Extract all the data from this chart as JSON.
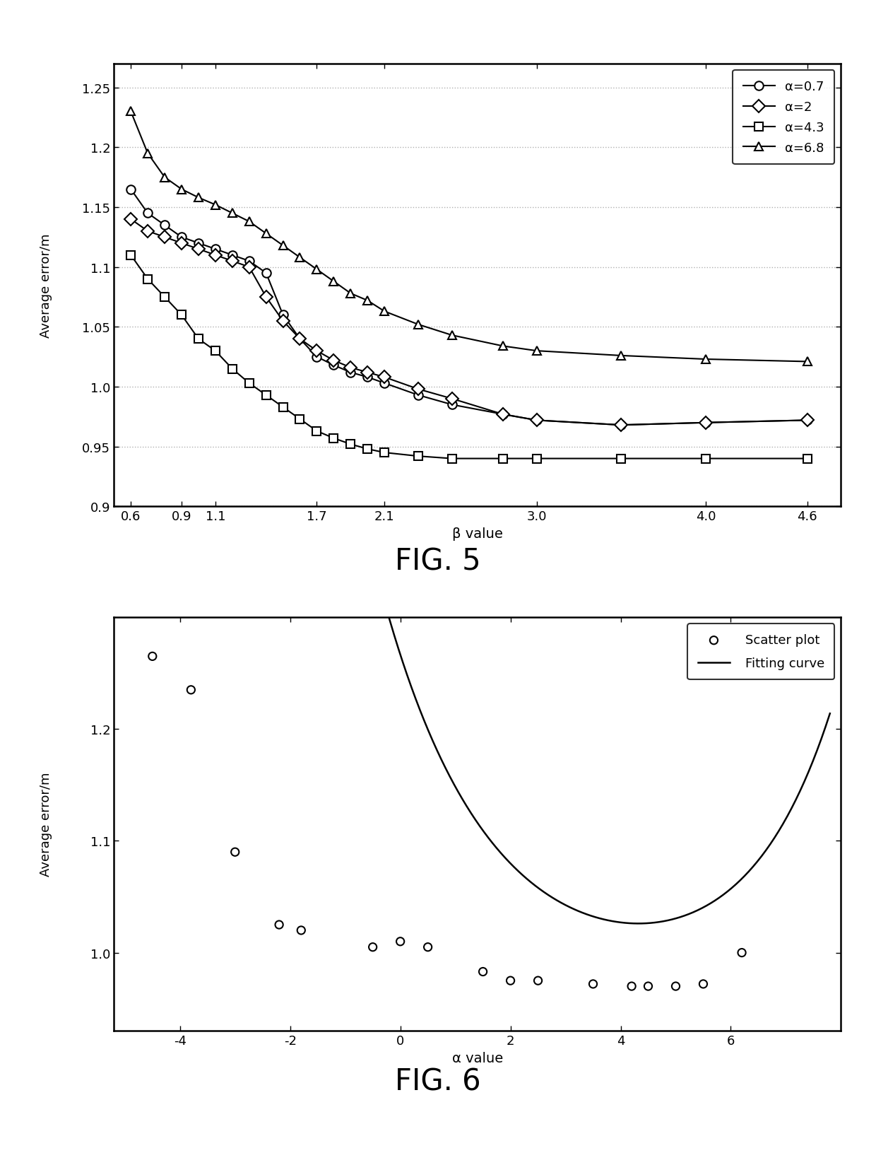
{
  "fig5": {
    "title": "FIG. 5",
    "xlabel": "β value",
    "ylabel": "Average error/m",
    "xlim": [
      0.5,
      4.8
    ],
    "ylim": [
      0.9,
      1.27
    ],
    "xticks": [
      0.6,
      0.9,
      1.1,
      1.7,
      2.1,
      3.0,
      4.0,
      4.6
    ],
    "yticks": [
      0.9,
      0.95,
      1.0,
      1.05,
      1.1,
      1.15,
      1.2,
      1.25
    ],
    "series": [
      {
        "label": "α=0.7",
        "marker": "o",
        "x": [
          0.6,
          0.7,
          0.8,
          0.9,
          1.0,
          1.1,
          1.2,
          1.3,
          1.4,
          1.5,
          1.6,
          1.7,
          1.8,
          1.9,
          2.0,
          2.1,
          2.3,
          2.5,
          2.8,
          3.0,
          3.5,
          4.0,
          4.6
        ],
        "y": [
          1.165,
          1.145,
          1.135,
          1.125,
          1.12,
          1.115,
          1.11,
          1.105,
          1.095,
          1.06,
          1.04,
          1.025,
          1.018,
          1.012,
          1.008,
          1.003,
          0.993,
          0.985,
          0.977,
          0.972,
          0.968,
          0.97,
          0.972
        ]
      },
      {
        "label": "α=2",
        "marker": "D",
        "x": [
          0.6,
          0.7,
          0.8,
          0.9,
          1.0,
          1.1,
          1.2,
          1.3,
          1.4,
          1.5,
          1.6,
          1.7,
          1.8,
          1.9,
          2.0,
          2.1,
          2.3,
          2.5,
          2.8,
          3.0,
          3.5,
          4.0,
          4.6
        ],
        "y": [
          1.14,
          1.13,
          1.125,
          1.12,
          1.115,
          1.11,
          1.105,
          1.1,
          1.075,
          1.055,
          1.04,
          1.03,
          1.022,
          1.016,
          1.012,
          1.008,
          0.998,
          0.99,
          0.977,
          0.972,
          0.968,
          0.97,
          0.972
        ]
      },
      {
        "label": "α=4.3",
        "marker": "s",
        "x": [
          0.6,
          0.7,
          0.8,
          0.9,
          1.0,
          1.1,
          1.2,
          1.3,
          1.4,
          1.5,
          1.6,
          1.7,
          1.8,
          1.9,
          2.0,
          2.1,
          2.3,
          2.5,
          2.8,
          3.0,
          3.5,
          4.0,
          4.6
        ],
        "y": [
          1.11,
          1.09,
          1.075,
          1.06,
          1.04,
          1.03,
          1.015,
          1.003,
          0.993,
          0.983,
          0.973,
          0.963,
          0.957,
          0.952,
          0.948,
          0.945,
          0.942,
          0.94,
          0.94,
          0.94,
          0.94,
          0.94,
          0.94
        ]
      },
      {
        "label": "α=6.8",
        "marker": "^",
        "x": [
          0.6,
          0.7,
          0.8,
          0.9,
          1.0,
          1.1,
          1.2,
          1.3,
          1.4,
          1.5,
          1.6,
          1.7,
          1.8,
          1.9,
          2.0,
          2.1,
          2.3,
          2.5,
          2.8,
          3.0,
          3.5,
          4.0,
          4.6
        ],
        "y": [
          1.23,
          1.195,
          1.175,
          1.165,
          1.158,
          1.152,
          1.145,
          1.138,
          1.128,
          1.118,
          1.108,
          1.098,
          1.088,
          1.078,
          1.072,
          1.063,
          1.052,
          1.043,
          1.034,
          1.03,
          1.026,
          1.023,
          1.021
        ]
      }
    ]
  },
  "fig6": {
    "title": "FIG. 6",
    "xlabel": "α value",
    "ylabel": "Average error/m",
    "xlim": [
      -5.2,
      8.0
    ],
    "ylim": [
      0.93,
      1.3
    ],
    "xticks": [
      -4,
      -2,
      0,
      2,
      4,
      6
    ],
    "yticks": [
      1.0,
      1.1,
      1.2
    ],
    "scatter_x": [
      -4.5,
      -3.8,
      -3.0,
      -2.2,
      -1.8,
      -0.5,
      0.0,
      0.5,
      1.5,
      2.0,
      2.5,
      3.5,
      4.2,
      4.5,
      5.0,
      5.5,
      6.2
    ],
    "scatter_y": [
      1.265,
      1.235,
      1.09,
      1.025,
      1.02,
      1.005,
      1.01,
      1.005,
      0.983,
      0.975,
      0.975,
      0.972,
      0.97,
      0.97,
      0.97,
      0.972,
      1.0
    ],
    "fit_label": "Fitting curve",
    "scatter_label": "Scatter plot",
    "fit_a": 0.295,
    "fit_b": -0.52,
    "fit_c": 0.0015,
    "fit_d": 0.65,
    "fit_e": 0.97
  },
  "background_color": "#ffffff",
  "line_color": "#000000",
  "grid_color": "#b0b0b0"
}
